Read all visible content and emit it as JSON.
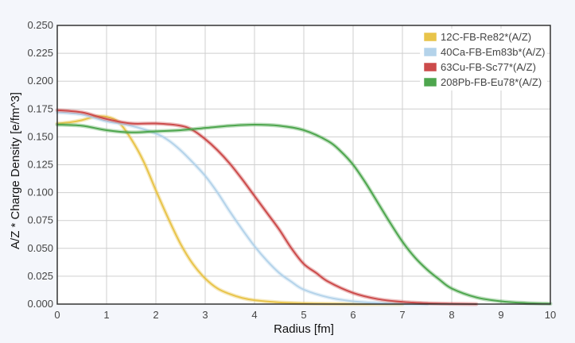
{
  "chart_data": {
    "type": "line",
    "title": "",
    "xlabel": "Radius [fm]",
    "ylabel": "A/Z * Charge Density [e/fm^3]",
    "xlim": [
      0,
      10
    ],
    "ylim": [
      0,
      0.25
    ],
    "x_ticks": [
      "0",
      "1",
      "2",
      "3",
      "4",
      "5",
      "6",
      "7",
      "8",
      "9",
      "10"
    ],
    "y_ticks": [
      "0.000",
      "0.025",
      "0.050",
      "0.075",
      "0.100",
      "0.125",
      "0.150",
      "0.175",
      "0.200",
      "0.225",
      "0.250"
    ],
    "grid": true,
    "legend_position": "top-right",
    "series": [
      {
        "name": "12C-FB-Re82*(A/Z)",
        "color": "#e8c44a",
        "x": [
          0,
          0.25,
          0.5,
          0.75,
          1.0,
          1.25,
          1.5,
          1.75,
          2.0,
          2.25,
          2.5,
          2.75,
          3.0,
          3.25,
          3.5,
          3.75,
          4.0,
          4.5,
          5.0,
          5.5,
          6.0,
          6.5,
          7.0
        ],
        "y": [
          0.162,
          0.163,
          0.165,
          0.168,
          0.168,
          0.163,
          0.148,
          0.128,
          0.102,
          0.077,
          0.054,
          0.036,
          0.023,
          0.014,
          0.009,
          0.0055,
          0.0035,
          0.0015,
          0.0007,
          0.0003,
          0.0001,
          0.0,
          0.0
        ]
      },
      {
        "name": "40Ca-FB-Em83b*(A/Z)",
        "color": "#b4d3ea",
        "x": [
          0,
          0.5,
          1.0,
          1.5,
          2.0,
          2.25,
          2.5,
          2.75,
          3.0,
          3.25,
          3.5,
          3.75,
          4.0,
          4.25,
          4.5,
          4.75,
          5.0,
          5.5,
          6.0,
          6.5,
          7.0,
          7.5
        ],
        "y": [
          0.172,
          0.17,
          0.164,
          0.16,
          0.153,
          0.147,
          0.138,
          0.127,
          0.115,
          0.1,
          0.083,
          0.067,
          0.052,
          0.039,
          0.028,
          0.02,
          0.013,
          0.006,
          0.0025,
          0.001,
          0.0003,
          0.0
        ]
      },
      {
        "name": "63Cu-FB-Sc77*(A/Z)",
        "color": "#cc4b4b",
        "x": [
          0,
          0.5,
          1.0,
          1.5,
          2.0,
          2.5,
          2.75,
          3.0,
          3.25,
          3.5,
          3.75,
          4.0,
          4.25,
          4.5,
          4.75,
          5.0,
          5.25,
          5.5,
          6.0,
          6.5,
          7.0,
          7.5,
          8.0,
          8.5
        ],
        "y": [
          0.174,
          0.172,
          0.166,
          0.162,
          0.162,
          0.16,
          0.156,
          0.148,
          0.138,
          0.126,
          0.112,
          0.097,
          0.082,
          0.067,
          0.05,
          0.036,
          0.028,
          0.02,
          0.01,
          0.0045,
          0.002,
          0.0008,
          0.0003,
          0.0
        ]
      },
      {
        "name": "208Pb-FB-Eu78*(A/Z)",
        "color": "#4ea64e",
        "x": [
          0,
          0.5,
          1.0,
          1.5,
          2.0,
          2.5,
          3.0,
          3.5,
          4.0,
          4.5,
          5.0,
          5.5,
          5.75,
          6.0,
          6.25,
          6.5,
          6.75,
          7.0,
          7.25,
          7.5,
          7.75,
          8.0,
          8.5,
          9.0,
          9.5,
          10.0
        ],
        "y": [
          0.161,
          0.16,
          0.156,
          0.154,
          0.155,
          0.156,
          0.158,
          0.16,
          0.161,
          0.16,
          0.156,
          0.146,
          0.137,
          0.125,
          0.109,
          0.091,
          0.073,
          0.056,
          0.042,
          0.031,
          0.022,
          0.014,
          0.006,
          0.0025,
          0.001,
          0.0003
        ]
      }
    ]
  }
}
